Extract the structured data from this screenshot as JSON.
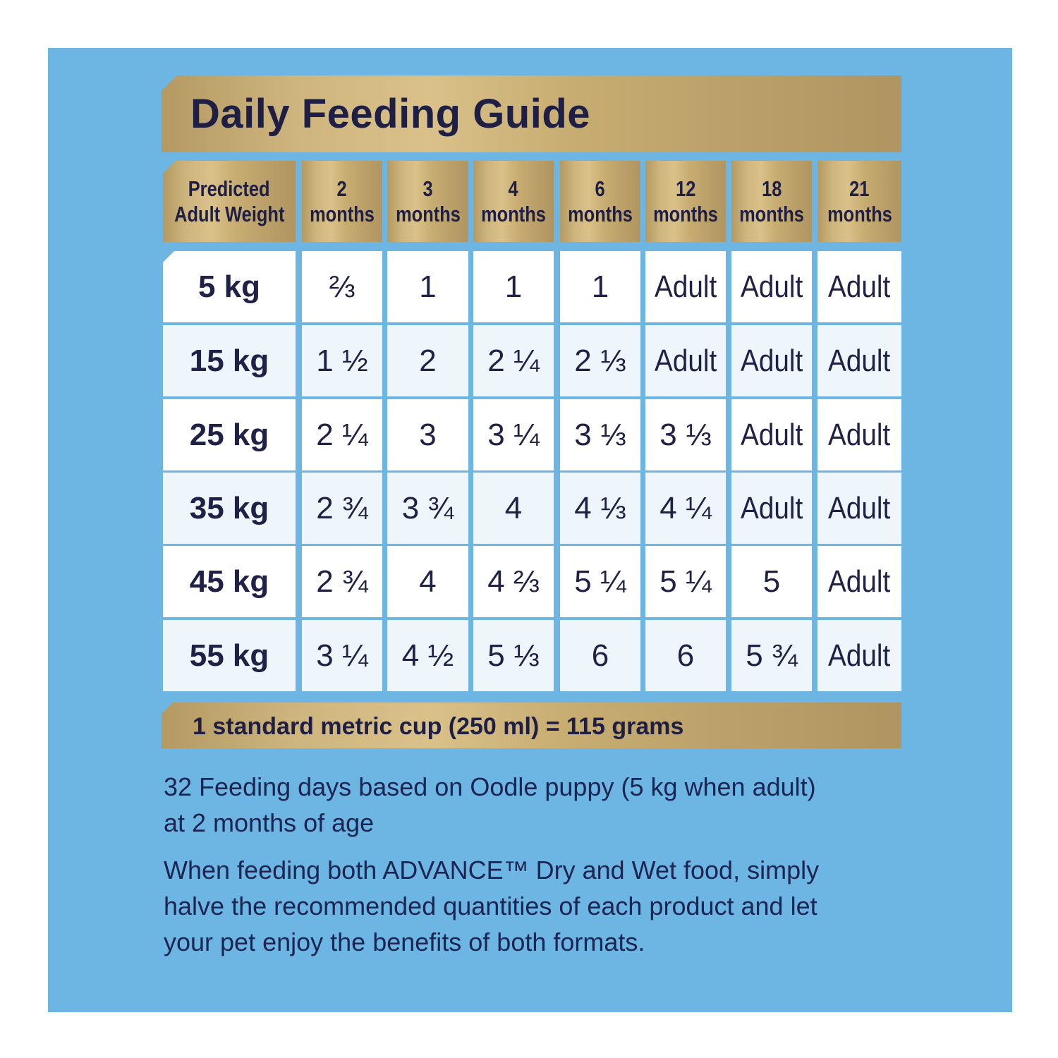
{
  "title": "Daily Feeding Guide",
  "columns": {
    "weight": [
      "Predicted",
      "Adult Weight"
    ],
    "ages": [
      [
        "2",
        "months"
      ],
      [
        "3",
        "months"
      ],
      [
        "4",
        "months"
      ],
      [
        "6",
        "months"
      ],
      [
        "12",
        "months"
      ],
      [
        "18",
        "months"
      ],
      [
        "21",
        "months"
      ]
    ]
  },
  "rows": [
    {
      "weight": "5 kg",
      "values": [
        "⅔",
        "1",
        "1",
        "1",
        "Adult",
        "Adult",
        "Adult"
      ]
    },
    {
      "weight": "15 kg",
      "values": [
        "1 ½",
        "2",
        "2 ¼",
        "2 ⅓",
        "Adult",
        "Adult",
        "Adult"
      ]
    },
    {
      "weight": "25 kg",
      "values": [
        "2 ¼",
        "3",
        "3 ¼",
        "3 ⅓",
        "3 ⅓",
        "Adult",
        "Adult"
      ]
    },
    {
      "weight": "35 kg",
      "values": [
        "2 ¾",
        "3 ¾",
        "4",
        "4 ⅓",
        "4 ¼",
        "Adult",
        "Adult"
      ]
    },
    {
      "weight": "45 kg",
      "values": [
        "2 ¾",
        "4",
        "4 ⅔",
        "5 ¼",
        "5 ¼",
        "5",
        "Adult"
      ]
    },
    {
      "weight": "55 kg",
      "values": [
        "3 ¼",
        "4 ½",
        "5 ⅓",
        "6",
        "6",
        "5 ¾",
        "Adult"
      ]
    }
  ],
  "cup_note": "1 standard metric cup (250 ml) = 115 grams",
  "notes": [
    "32 Feeding days based on Oodle puppy (5 kg when adult) at 2 months of age",
    "When feeding both ADVANCE™ Dry and Wet food, simply halve the recommended quantities of each product and let your pet enjoy the benefits of both formats."
  ]
}
